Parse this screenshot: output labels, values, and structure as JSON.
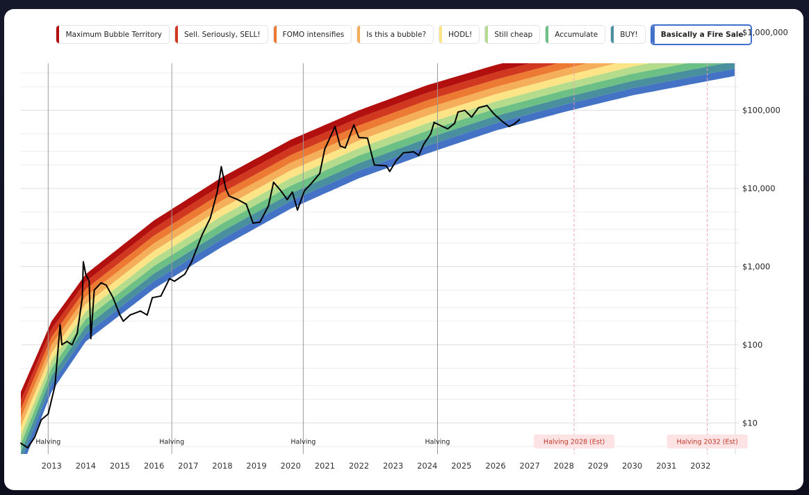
{
  "legend": [
    {
      "label": "Maximum Bubble Territory",
      "color": "#b20f0f"
    },
    {
      "label": "Sell. Seriously, SELL!",
      "color": "#d0391f"
    },
    {
      "label": "FOMO intensifies",
      "color": "#ec7a32"
    },
    {
      "label": "Is this a bubble?",
      "color": "#f5ae5a"
    },
    {
      "label": "HODL!",
      "color": "#fde587"
    },
    {
      "label": "Still cheap",
      "color": "#b4dc8c"
    },
    {
      "label": "Accumulate",
      "color": "#6cbf85"
    },
    {
      "label": "BUY!",
      "color": "#4a8f9e"
    },
    {
      "label": "Basically a Fire Sale",
      "color": "#4472c4"
    }
  ],
  "active_legend": "Basically a Fire Sale",
  "chart_data": {
    "type": "area",
    "y_scale": "log",
    "ylim": [
      4,
      400000
    ],
    "xlim": [
      2012.1,
      2033.0
    ],
    "y_ticks": [
      {
        "value": 10,
        "label": "$10"
      },
      {
        "value": 100,
        "label": "$100"
      },
      {
        "value": 1000,
        "label": "$1,000"
      },
      {
        "value": 10000,
        "label": "$10,000"
      },
      {
        "value": 100000,
        "label": "$100,000"
      },
      {
        "value": 1000000,
        "label": "$1,000,000"
      }
    ],
    "x_ticks": [
      "2013",
      "2014",
      "2015",
      "2016",
      "2017",
      "2018",
      "2019",
      "2020",
      "2021",
      "2022",
      "2023",
      "2024",
      "2025",
      "2026",
      "2027",
      "2028",
      "2029",
      "2030",
      "2031",
      "2032"
    ],
    "bands": {
      "names": [
        "Basically a Fire Sale",
        "BUY!",
        "Accumulate",
        "Still cheap",
        "HODL!",
        "Is this a bubble?",
        "FOMO intensifies",
        "Sell. Seriously, SELL!",
        "Maximum Bubble Territory"
      ],
      "colors": [
        "#4472c4",
        "#4a8f9e",
        "#6cbf85",
        "#b4dc8c",
        "#fde587",
        "#f5ae5a",
        "#ec7a32",
        "#d0391f",
        "#b20f0f"
      ],
      "lower_curve": [
        {
          "x": 2012.1,
          "y": 2.5
        },
        {
          "x": 2013.0,
          "y": 25
        },
        {
          "x": 2014.0,
          "y": 110
        },
        {
          "x": 2016.0,
          "y": 520
        },
        {
          "x": 2018.0,
          "y": 1800
        },
        {
          "x": 2020.0,
          "y": 5500
        },
        {
          "x": 2022.0,
          "y": 13500
        },
        {
          "x": 2024.0,
          "y": 28000
        },
        {
          "x": 2026.0,
          "y": 55000
        },
        {
          "x": 2028.0,
          "y": 95000
        },
        {
          "x": 2030.0,
          "y": 155000
        },
        {
          "x": 2033.0,
          "y": 275000
        }
      ],
      "upper_curve": [
        {
          "x": 2012.1,
          "y": 25
        },
        {
          "x": 2013.0,
          "y": 200
        },
        {
          "x": 2014.0,
          "y": 800
        },
        {
          "x": 2016.0,
          "y": 3900
        },
        {
          "x": 2018.0,
          "y": 14000
        },
        {
          "x": 2020.0,
          "y": 42000
        },
        {
          "x": 2022.0,
          "y": 100000
        },
        {
          "x": 2024.0,
          "y": 210000
        },
        {
          "x": 2026.0,
          "y": 380000
        },
        {
          "x": 2028.0,
          "y": 640000
        },
        {
          "x": 2030.0,
          "y": 1050000
        },
        {
          "x": 2033.0,
          "y": 1900000
        }
      ]
    },
    "series": [
      {
        "values": [
          {
            "x": 2012.1,
            "y": 5.5
          },
          {
            "x": 2012.3,
            "y": 4.8
          },
          {
            "x": 2012.5,
            "y": 6.5
          },
          {
            "x": 2012.7,
            "y": 11
          },
          {
            "x": 2012.9,
            "y": 13
          },
          {
            "x": 2013.1,
            "y": 30
          },
          {
            "x": 2013.25,
            "y": 180
          },
          {
            "x": 2013.3,
            "y": 100
          },
          {
            "x": 2013.45,
            "y": 110
          },
          {
            "x": 2013.6,
            "y": 100
          },
          {
            "x": 2013.75,
            "y": 140
          },
          {
            "x": 2013.9,
            "y": 400
          },
          {
            "x": 2013.93,
            "y": 1150
          },
          {
            "x": 2014.0,
            "y": 800
          },
          {
            "x": 2014.1,
            "y": 650
          },
          {
            "x": 2014.15,
            "y": 120
          },
          {
            "x": 2014.25,
            "y": 500
          },
          {
            "x": 2014.45,
            "y": 620
          },
          {
            "x": 2014.6,
            "y": 580
          },
          {
            "x": 2014.8,
            "y": 400
          },
          {
            "x": 2015.0,
            "y": 240
          },
          {
            "x": 2015.1,
            "y": 200
          },
          {
            "x": 2015.3,
            "y": 240
          },
          {
            "x": 2015.6,
            "y": 270
          },
          {
            "x": 2015.8,
            "y": 240
          },
          {
            "x": 2015.95,
            "y": 400
          },
          {
            "x": 2016.2,
            "y": 420
          },
          {
            "x": 2016.45,
            "y": 700
          },
          {
            "x": 2016.6,
            "y": 650
          },
          {
            "x": 2016.9,
            "y": 800
          },
          {
            "x": 2017.1,
            "y": 1150
          },
          {
            "x": 2017.4,
            "y": 2500
          },
          {
            "x": 2017.65,
            "y": 4200
          },
          {
            "x": 2017.85,
            "y": 9000
          },
          {
            "x": 2017.97,
            "y": 19000
          },
          {
            "x": 2018.1,
            "y": 10000
          },
          {
            "x": 2018.2,
            "y": 8000
          },
          {
            "x": 2018.45,
            "y": 7200
          },
          {
            "x": 2018.7,
            "y": 6300
          },
          {
            "x": 2018.9,
            "y": 3600
          },
          {
            "x": 2019.1,
            "y": 3700
          },
          {
            "x": 2019.35,
            "y": 6000
          },
          {
            "x": 2019.5,
            "y": 12000
          },
          {
            "x": 2019.7,
            "y": 9500
          },
          {
            "x": 2019.9,
            "y": 7200
          },
          {
            "x": 2020.05,
            "y": 9000
          },
          {
            "x": 2020.2,
            "y": 5300
          },
          {
            "x": 2020.4,
            "y": 9300
          },
          {
            "x": 2020.6,
            "y": 11500
          },
          {
            "x": 2020.85,
            "y": 15500
          },
          {
            "x": 2021.0,
            "y": 32000
          },
          {
            "x": 2021.3,
            "y": 62000
          },
          {
            "x": 2021.45,
            "y": 35000
          },
          {
            "x": 2021.6,
            "y": 33000
          },
          {
            "x": 2021.85,
            "y": 65000
          },
          {
            "x": 2022.0,
            "y": 45000
          },
          {
            "x": 2022.25,
            "y": 44000
          },
          {
            "x": 2022.45,
            "y": 20000
          },
          {
            "x": 2022.8,
            "y": 19500
          },
          {
            "x": 2022.9,
            "y": 16500
          },
          {
            "x": 2023.1,
            "y": 23000
          },
          {
            "x": 2023.3,
            "y": 28500
          },
          {
            "x": 2023.6,
            "y": 29500
          },
          {
            "x": 2023.75,
            "y": 26500
          },
          {
            "x": 2023.9,
            "y": 37000
          },
          {
            "x": 2024.1,
            "y": 50000
          },
          {
            "x": 2024.2,
            "y": 70000
          },
          {
            "x": 2024.45,
            "y": 62000
          },
          {
            "x": 2024.6,
            "y": 58000
          },
          {
            "x": 2024.8,
            "y": 68000
          },
          {
            "x": 2024.9,
            "y": 95000
          },
          {
            "x": 2025.1,
            "y": 100000
          },
          {
            "x": 2025.3,
            "y": 82000
          },
          {
            "x": 2025.5,
            "y": 108000
          },
          {
            "x": 2025.75,
            "y": 115000
          },
          {
            "x": 2025.95,
            "y": 90000
          },
          {
            "x": 2026.2,
            "y": 72000
          },
          {
            "x": 2026.4,
            "y": 62000
          },
          {
            "x": 2026.55,
            "y": 67000
          },
          {
            "x": 2026.7,
            "y": 76000
          }
        ]
      }
    ],
    "halvings": [
      {
        "x": 2012.9,
        "label": "Halving",
        "estimated": false
      },
      {
        "x": 2016.52,
        "label": "Halving",
        "estimated": false
      },
      {
        "x": 2020.37,
        "label": "Halving",
        "estimated": false
      },
      {
        "x": 2024.3,
        "label": "Halving",
        "estimated": false
      },
      {
        "x": 2028.3,
        "label": "Halving 2028 (Est)",
        "estimated": true
      },
      {
        "x": 2032.2,
        "label": "Halving 2032 (Est)",
        "estimated": true
      }
    ],
    "grid": true,
    "legend_position": "top"
  }
}
